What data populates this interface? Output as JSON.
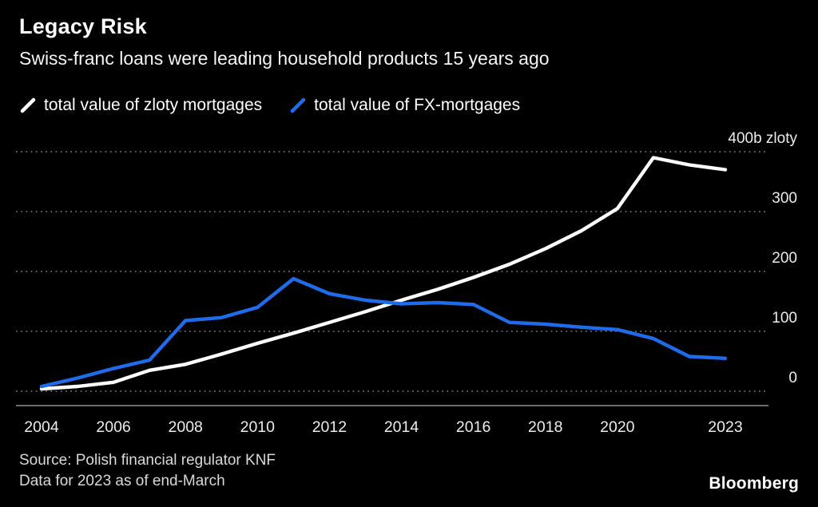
{
  "header": {
    "title": "Legacy Risk",
    "subtitle": "Swiss-franc loans were leading household products 15 years ago"
  },
  "legend": {
    "items": [
      {
        "label": "total value of zloty mortgages",
        "color": "#ffffff"
      },
      {
        "label": "total value of FX-mortgages",
        "color": "#1e6ceb"
      }
    ]
  },
  "chart_data": {
    "type": "line",
    "x": [
      2004,
      2005,
      2006,
      2007,
      2008,
      2009,
      2010,
      2011,
      2012,
      2013,
      2014,
      2015,
      2016,
      2017,
      2018,
      2019,
      2020,
      2021,
      2022,
      2023
    ],
    "series": [
      {
        "name": "total value of zloty mortgages",
        "color": "#ffffff",
        "values": [
          4,
          8,
          15,
          35,
          45,
          62,
          80,
          97,
          115,
          133,
          152,
          170,
          190,
          212,
          238,
          268,
          305,
          390,
          378,
          370
        ]
      },
      {
        "name": "total value of FX-mortgages",
        "color": "#1e6ceb",
        "values": [
          8,
          22,
          38,
          52,
          118,
          123,
          140,
          188,
          163,
          152,
          146,
          148,
          145,
          115,
          112,
          107,
          103,
          88,
          58,
          55
        ]
      }
    ],
    "ylim": [
      0,
      400
    ],
    "ylabel": "400b zloty",
    "y_ticks": [
      {
        "value": 400,
        "label": "400b zloty"
      },
      {
        "value": 300,
        "label": "300"
      },
      {
        "value": 200,
        "label": "200"
      },
      {
        "value": 100,
        "label": "100"
      },
      {
        "value": 0,
        "label": "0"
      }
    ],
    "x_ticks": [
      {
        "value": 2004,
        "label": "2004"
      },
      {
        "value": 2006,
        "label": "2006"
      },
      {
        "value": 2008,
        "label": "2008"
      },
      {
        "value": 2010,
        "label": "2010"
      },
      {
        "value": 2012,
        "label": "2012"
      },
      {
        "value": 2014,
        "label": "2014"
      },
      {
        "value": 2016,
        "label": "2016"
      },
      {
        "value": 2018,
        "label": "2018"
      },
      {
        "value": 2020,
        "label": "2020"
      },
      {
        "value": 2023,
        "label": "2023"
      }
    ],
    "grid": "horizontal-dotted",
    "grid_color": "#7a7a7a",
    "axis_color": "#8f8f8f",
    "legend_position": "top",
    "background_color": "#000000"
  },
  "footer": {
    "source_line1": "Source: Polish financial regulator KNF",
    "source_line2": "Data for 2023 as of end-March",
    "brand": "Bloomberg"
  }
}
